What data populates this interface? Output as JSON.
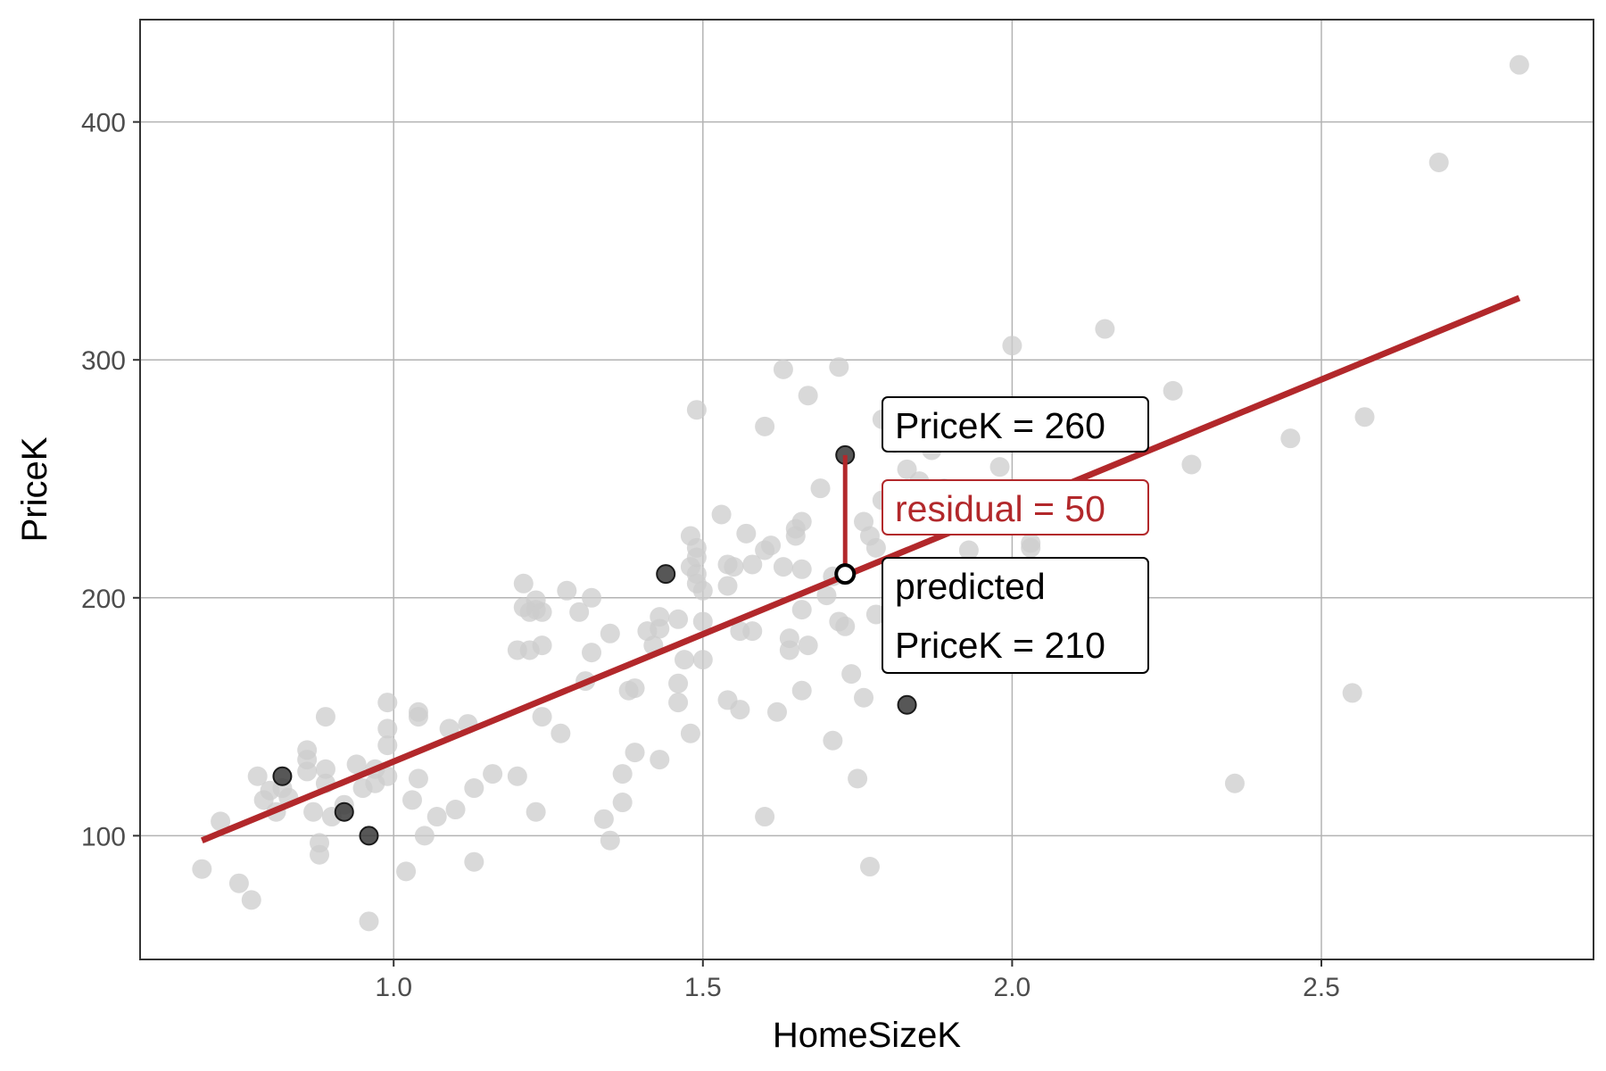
{
  "chart_data": {
    "type": "scatter",
    "xlabel": "HomeSizeK",
    "ylabel": "PriceK",
    "xlim": [
      0.59,
      2.94
    ],
    "ylim": [
      48,
      443
    ],
    "x_ticks": [
      1.0,
      1.5,
      2.0,
      2.5
    ],
    "x_tick_labels": [
      "1.0",
      "1.5",
      "2.0",
      "2.5"
    ],
    "y_ticks": [
      100,
      200,
      300,
      400
    ],
    "y_tick_labels": [
      "100",
      "200",
      "300",
      "400"
    ],
    "grid": true,
    "regression_line": {
      "x": [
        0.69,
        2.82
      ],
      "y": [
        98,
        326
      ]
    },
    "background_points": [
      [
        0.69,
        86
      ],
      [
        0.72,
        106
      ],
      [
        0.75,
        80
      ],
      [
        0.77,
        73
      ],
      [
        0.78,
        125
      ],
      [
        0.79,
        115
      ],
      [
        0.8,
        119
      ],
      [
        0.81,
        110
      ],
      [
        0.82,
        120
      ],
      [
        0.83,
        116
      ],
      [
        0.86,
        136
      ],
      [
        0.86,
        132
      ],
      [
        0.86,
        127
      ],
      [
        0.87,
        110
      ],
      [
        0.88,
        97
      ],
      [
        0.88,
        92
      ],
      [
        0.89,
        150
      ],
      [
        0.89,
        128
      ],
      [
        0.89,
        122
      ],
      [
        0.9,
        108
      ],
      [
        0.92,
        113
      ],
      [
        0.94,
        130
      ],
      [
        0.95,
        120
      ],
      [
        0.96,
        64
      ],
      [
        0.97,
        128
      ],
      [
        0.97,
        122
      ],
      [
        0.99,
        156
      ],
      [
        0.99,
        145
      ],
      [
        0.99,
        138
      ],
      [
        0.99,
        125
      ],
      [
        1.02,
        85
      ],
      [
        1.03,
        115
      ],
      [
        1.04,
        152
      ],
      [
        1.04,
        150
      ],
      [
        1.04,
        124
      ],
      [
        1.05,
        100
      ],
      [
        1.07,
        108
      ],
      [
        1.09,
        145
      ],
      [
        1.1,
        111
      ],
      [
        1.12,
        147
      ],
      [
        1.13,
        120
      ],
      [
        1.13,
        89
      ],
      [
        1.16,
        126
      ],
      [
        1.2,
        178
      ],
      [
        1.2,
        125
      ],
      [
        1.21,
        206
      ],
      [
        1.21,
        196
      ],
      [
        1.22,
        194
      ],
      [
        1.22,
        178
      ],
      [
        1.23,
        199
      ],
      [
        1.23,
        195
      ],
      [
        1.23,
        110
      ],
      [
        1.24,
        194
      ],
      [
        1.24,
        180
      ],
      [
        1.24,
        150
      ],
      [
        1.27,
        143
      ],
      [
        1.28,
        203
      ],
      [
        1.3,
        194
      ],
      [
        1.31,
        165
      ],
      [
        1.32,
        200
      ],
      [
        1.32,
        177
      ],
      [
        1.34,
        107
      ],
      [
        1.35,
        185
      ],
      [
        1.35,
        98
      ],
      [
        1.37,
        126
      ],
      [
        1.37,
        114
      ],
      [
        1.38,
        161
      ],
      [
        1.39,
        162
      ],
      [
        1.39,
        135
      ],
      [
        1.41,
        186
      ],
      [
        1.42,
        180
      ],
      [
        1.43,
        192
      ],
      [
        1.43,
        187
      ],
      [
        1.43,
        132
      ],
      [
        1.46,
        191
      ],
      [
        1.46,
        164
      ],
      [
        1.46,
        156
      ],
      [
        1.47,
        174
      ],
      [
        1.48,
        226
      ],
      [
        1.48,
        213
      ],
      [
        1.48,
        143
      ],
      [
        1.49,
        221
      ],
      [
        1.49,
        217
      ],
      [
        1.49,
        210
      ],
      [
        1.49,
        206
      ],
      [
        1.49,
        279
      ],
      [
        1.5,
        203
      ],
      [
        1.5,
        190
      ],
      [
        1.5,
        174
      ],
      [
        1.53,
        235
      ],
      [
        1.54,
        214
      ],
      [
        1.54,
        205
      ],
      [
        1.54,
        157
      ],
      [
        1.55,
        213
      ],
      [
        1.56,
        153
      ],
      [
        1.57,
        227
      ],
      [
        1.58,
        186
      ],
      [
        1.58,
        214
      ],
      [
        1.6,
        272
      ],
      [
        1.6,
        220
      ],
      [
        1.61,
        222
      ],
      [
        1.62,
        152
      ],
      [
        1.63,
        213
      ],
      [
        1.63,
        296
      ],
      [
        1.64,
        183
      ],
      [
        1.64,
        178
      ],
      [
        1.65,
        229
      ],
      [
        1.65,
        226
      ],
      [
        1.66,
        195
      ],
      [
        1.66,
        212
      ],
      [
        1.66,
        232
      ],
      [
        1.66,
        161
      ],
      [
        1.67,
        285
      ],
      [
        1.67,
        180
      ],
      [
        1.69,
        246
      ],
      [
        1.7,
        201
      ],
      [
        1.71,
        209
      ],
      [
        1.71,
        140
      ],
      [
        1.72,
        297
      ],
      [
        1.72,
        190
      ],
      [
        1.73,
        188
      ],
      [
        1.74,
        168
      ],
      [
        1.75,
        124
      ],
      [
        1.76,
        158
      ],
      [
        1.76,
        232
      ],
      [
        1.77,
        226
      ],
      [
        1.78,
        221
      ],
      [
        1.78,
        193
      ],
      [
        1.79,
        241
      ],
      [
        1.79,
        275
      ],
      [
        1.81,
        265
      ],
      [
        1.83,
        254
      ],
      [
        1.85,
        249
      ],
      [
        1.87,
        262
      ],
      [
        1.89,
        246
      ],
      [
        1.91,
        237
      ],
      [
        1.93,
        220
      ],
      [
        1.97,
        239
      ],
      [
        1.98,
        255
      ],
      [
        2.0,
        306
      ],
      [
        2.03,
        223
      ],
      [
        2.03,
        221
      ],
      [
        2.15,
        313
      ],
      [
        2.26,
        287
      ],
      [
        2.29,
        256
      ],
      [
        2.36,
        122
      ],
      [
        2.45,
        267
      ],
      [
        2.55,
        160
      ],
      [
        2.57,
        276
      ],
      [
        2.69,
        383
      ],
      [
        2.82,
        424
      ],
      [
        1.6,
        108
      ],
      [
        1.77,
        87
      ],
      [
        1.56,
        186
      ]
    ],
    "highlighted_points": [
      [
        0.82,
        125
      ],
      [
        0.92,
        110
      ],
      [
        0.96,
        100
      ],
      [
        1.44,
        210
      ],
      [
        1.73,
        260
      ],
      [
        1.83,
        155
      ]
    ],
    "annotations": {
      "actual_label": "PriceK = 260",
      "residual_label": "residual = 50",
      "predicted_label_line1": "predicted",
      "predicted_label_line2": "PriceK = 210",
      "focus_x": 1.73,
      "actual_y": 260,
      "predicted_y": 210
    },
    "colors": {
      "line": "#B2282B",
      "residual_text": "#B2282B",
      "background_points": "#CCCCCC",
      "highlighted_points": "#3A3A3A",
      "grid": "#B3B3B3",
      "border": "#333333"
    }
  }
}
